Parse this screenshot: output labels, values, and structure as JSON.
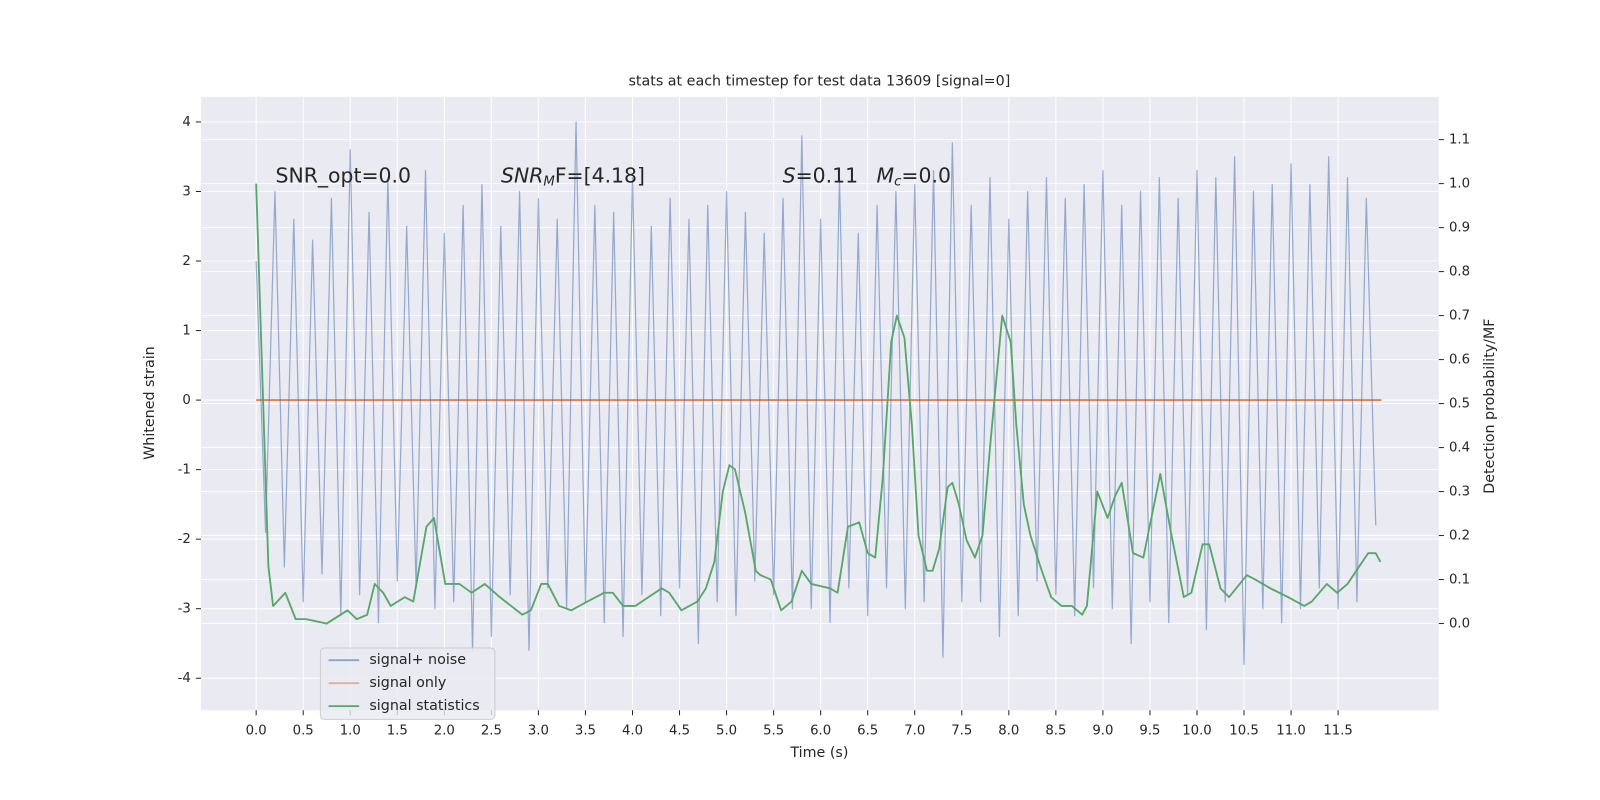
{
  "chart_data": {
    "type": "line",
    "title": "stats at each timestep for test data 13609 [signal=0]",
    "xlabel": "Time (s)",
    "ylabel": "Whitened strain",
    "y2label": "Detection probability/MF",
    "xlim": [
      -0.586,
      12.57
    ],
    "ylim": [
      -4.46,
      4.36
    ],
    "y2lim": [
      -0.197,
      1.197
    ],
    "xticks": [
      {
        "value": 0,
        "label": "0.0"
      },
      0.5,
      {
        "value": 1,
        "label": "1.0"
      },
      1.5,
      {
        "value": 2,
        "label": "2.0"
      },
      2.5,
      {
        "value": 3,
        "label": "3.0"
      },
      3.5,
      {
        "value": 4,
        "label": "4.0"
      },
      4.5,
      {
        "value": 5,
        "label": "5.0"
      },
      5.5,
      {
        "value": 6,
        "label": "6.0"
      },
      6.5,
      {
        "value": 7,
        "label": "7.0"
      },
      7.5,
      {
        "value": 8,
        "label": "8.0"
      },
      8.5,
      {
        "value": 9,
        "label": "9.0"
      },
      9.5,
      {
        "value": 10,
        "label": "10.0"
      },
      10.5,
      {
        "value": 11,
        "label": "11.0"
      },
      11.5
    ],
    "yticks": [
      -4,
      -3,
      -2,
      -1,
      0,
      1,
      2,
      3,
      4
    ],
    "y2ticks": [
      {
        "value": 0,
        "label": "0.0"
      },
      0.1,
      0.2,
      0.3,
      0.4,
      0.5,
      0.6,
      0.7,
      0.8,
      0.9,
      {
        "value": 1,
        "label": "1.0"
      },
      1.1
    ],
    "grid": true,
    "legend": "lower left",
    "annotations": [
      [
        {
          "text": "SNR_opt=0.0",
          "style": "normal"
        }
      ],
      [
        {
          "text": "SNR",
          "style": "italic"
        },
        {
          "text": "M",
          "style": "sub"
        },
        {
          "text": "F=[4.18]",
          "style": "normal"
        }
      ],
      [
        {
          "text": "S",
          "style": "italic"
        },
        {
          "text": "=0.11",
          "style": "normal"
        }
      ],
      [
        {
          "text": "M",
          "style": "italic"
        },
        {
          "text": "c",
          "style": "sub"
        },
        {
          "text": "=0.0",
          "style": "normal"
        }
      ]
    ],
    "series": [
      {
        "name": "signal+ noise",
        "color": "#4c72b0",
        "x": [
          0.0,
          0.1,
          0.2,
          0.3,
          0.4,
          0.5,
          0.6,
          0.7,
          0.8,
          0.9,
          1.0,
          1.1,
          1.2,
          1.3,
          1.4,
          1.5,
          1.6,
          1.7,
          1.8,
          1.9,
          2.0,
          2.1,
          2.2,
          2.3,
          2.4,
          2.5,
          2.6,
          2.7,
          2.8,
          2.9,
          3.0,
          3.1,
          3.2,
          3.3,
          3.4,
          3.5,
          3.6,
          3.7,
          3.8,
          3.9,
          4.0,
          4.1,
          4.2,
          4.3,
          4.4,
          4.5,
          4.6,
          4.7,
          4.8,
          4.9,
          5.0,
          5.1,
          5.2,
          5.3,
          5.4,
          5.5,
          5.6,
          5.7,
          5.8,
          5.9,
          6.0,
          6.1,
          6.2,
          6.3,
          6.4,
          6.5,
          6.6,
          6.7,
          6.8,
          6.9,
          7.0,
          7.1,
          7.2,
          7.3,
          7.4,
          7.5,
          7.6,
          7.7,
          7.8,
          7.9,
          8.0,
          8.1,
          8.2,
          8.3,
          8.4,
          8.5,
          8.6,
          8.7,
          8.8,
          8.9,
          9.0,
          9.1,
          9.2,
          9.3,
          9.4,
          9.5,
          9.6,
          9.7,
          9.8,
          9.9,
          10.0,
          10.1,
          10.2,
          10.3,
          10.4,
          10.5,
          10.6,
          10.7,
          10.8,
          10.9,
          11.0,
          11.1,
          11.2,
          11.3,
          11.4,
          11.5,
          11.6,
          11.7,
          11.8,
          11.9
        ],
        "values": [
          2.0,
          -1.9,
          3.0,
          -2.4,
          2.6,
          -2.9,
          2.3,
          -2.5,
          2.9,
          -3.1,
          3.6,
          -2.8,
          2.7,
          -3.2,
          3.2,
          -2.6,
          2.5,
          -2.7,
          3.3,
          -3.0,
          2.4,
          -2.9,
          2.8,
          -3.6,
          3.1,
          -3.4,
          2.5,
          -2.8,
          3.0,
          -3.6,
          2.9,
          -2.7,
          2.6,
          -3.0,
          4.0,
          -2.9,
          2.8,
          -3.2,
          2.7,
          -3.4,
          3.2,
          -2.8,
          2.5,
          -3.1,
          2.9,
          -2.7,
          2.6,
          -3.5,
          2.8,
          -2.9,
          3.0,
          -3.1,
          2.7,
          -2.6,
          2.4,
          -2.8,
          2.9,
          -3.0,
          3.8,
          -3.0,
          2.6,
          -3.2,
          3.2,
          -2.7,
          2.4,
          -3.1,
          2.8,
          -2.7,
          3.0,
          -3.0,
          3.1,
          -2.9,
          3.3,
          -3.7,
          3.7,
          -2.9,
          2.8,
          -2.9,
          3.2,
          -3.4,
          2.6,
          -3.1,
          3.0,
          -2.6,
          3.2,
          -2.8,
          2.9,
          -3.1,
          3.1,
          -2.7,
          3.3,
          -3.0,
          2.8,
          -3.5,
          3.0,
          -2.9,
          3.2,
          -3.2,
          2.9,
          -2.8,
          3.3,
          -3.3,
          3.2,
          -2.9,
          3.5,
          -3.8,
          3.0,
          -3.0,
          3.1,
          -3.2,
          3.4,
          -3.0,
          3.1,
          -2.7,
          3.5,
          -3.0,
          3.2,
          -2.9,
          2.9,
          -1.8
        ]
      },
      {
        "name": "signal only",
        "color": "#dd8452",
        "x": [
          0.0,
          11.96
        ],
        "values": [
          0,
          0
        ]
      },
      {
        "name": "signal statistics",
        "color": "#55a868",
        "axis": "y2",
        "x": [
          0.0,
          0.13,
          0.18,
          0.31,
          0.42,
          0.53,
          0.75,
          0.97,
          1.07,
          1.18,
          1.26,
          1.35,
          1.43,
          1.58,
          1.67,
          1.81,
          1.89,
          2.01,
          2.16,
          2.29,
          2.43,
          2.59,
          2.83,
          2.92,
          3.03,
          3.1,
          3.22,
          3.35,
          3.52,
          3.7,
          3.79,
          3.9,
          4.03,
          4.17,
          4.31,
          4.39,
          4.52,
          4.69,
          4.78,
          4.87,
          4.96,
          5.03,
          5.09,
          5.2,
          5.31,
          5.36,
          5.47,
          5.58,
          5.69,
          5.8,
          5.9,
          6.1,
          6.18,
          6.29,
          6.41,
          6.5,
          6.58,
          6.66,
          6.75,
          6.81,
          6.89,
          6.97,
          7.04,
          7.13,
          7.19,
          7.26,
          7.35,
          7.4,
          7.47,
          7.55,
          7.64,
          7.72,
          7.8,
          7.93,
          8.02,
          8.08,
          8.16,
          8.23,
          8.35,
          8.45,
          8.56,
          8.67,
          8.78,
          8.83,
          8.94,
          9.05,
          9.13,
          9.2,
          9.32,
          9.43,
          9.61,
          9.73,
          9.86,
          9.94,
          10.06,
          10.13,
          10.25,
          10.34,
          10.53,
          10.62,
          10.78,
          10.97,
          11.14,
          11.22,
          11.38,
          11.49,
          11.6,
          11.82,
          11.9,
          11.95
        ],
        "values": [
          1.0,
          0.13,
          0.04,
          0.07,
          0.01,
          0.01,
          0.0,
          0.03,
          0.01,
          0.02,
          0.09,
          0.07,
          0.04,
          0.06,
          0.05,
          0.22,
          0.24,
          0.09,
          0.09,
          0.07,
          0.09,
          0.06,
          0.02,
          0.03,
          0.09,
          0.09,
          0.04,
          0.03,
          0.05,
          0.07,
          0.07,
          0.04,
          0.04,
          0.06,
          0.08,
          0.07,
          0.03,
          0.05,
          0.08,
          0.14,
          0.3,
          0.36,
          0.35,
          0.25,
          0.12,
          0.11,
          0.1,
          0.03,
          0.05,
          0.12,
          0.09,
          0.08,
          0.07,
          0.22,
          0.23,
          0.16,
          0.15,
          0.33,
          0.64,
          0.7,
          0.65,
          0.45,
          0.2,
          0.12,
          0.12,
          0.17,
          0.31,
          0.32,
          0.27,
          0.19,
          0.15,
          0.2,
          0.4,
          0.7,
          0.64,
          0.45,
          0.27,
          0.2,
          0.12,
          0.06,
          0.04,
          0.04,
          0.02,
          0.04,
          0.3,
          0.24,
          0.29,
          0.32,
          0.16,
          0.15,
          0.34,
          0.2,
          0.06,
          0.07,
          0.18,
          0.18,
          0.08,
          0.06,
          0.11,
          0.1,
          0.08,
          0.06,
          0.04,
          0.05,
          0.09,
          0.07,
          0.09,
          0.16,
          0.16,
          0.14
        ]
      }
    ]
  }
}
